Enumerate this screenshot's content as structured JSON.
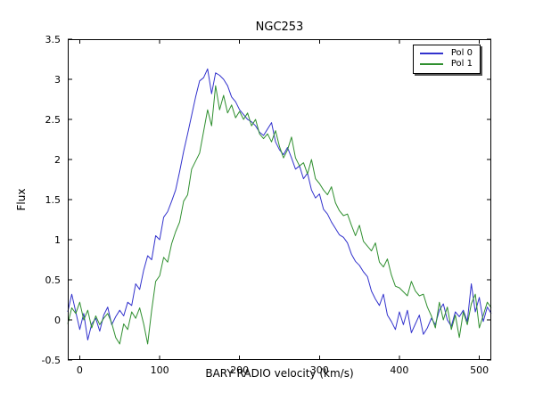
{
  "chart_data": {
    "type": "line",
    "title": "NGC253",
    "xlabel": "BARY RADIO velocity (km/s)",
    "ylabel": "Flux",
    "xlim": [
      -15,
      515
    ],
    "ylim": [
      -0.5,
      3.5
    ],
    "xticks": [
      0,
      100,
      200,
      300,
      400,
      500
    ],
    "xtick_labels": [
      "0",
      "100",
      "200",
      "300",
      "400",
      "500"
    ],
    "yticks": [
      -0.5,
      0,
      0.5,
      1,
      1.5,
      2,
      2.5,
      3,
      3.5
    ],
    "ytick_labels": [
      "-0.5",
      "0",
      "0.5",
      "1",
      "1.5",
      "2",
      "2.5",
      "3",
      "3.5"
    ],
    "grid": false,
    "legend_position": "upper right",
    "x": [
      -15,
      -10,
      -5,
      0,
      5,
      10,
      15,
      20,
      25,
      30,
      35,
      40,
      45,
      50,
      55,
      60,
      65,
      70,
      75,
      80,
      85,
      90,
      95,
      100,
      105,
      110,
      115,
      120,
      125,
      130,
      135,
      140,
      145,
      150,
      155,
      160,
      165,
      170,
      175,
      180,
      185,
      190,
      195,
      200,
      205,
      210,
      215,
      220,
      225,
      230,
      235,
      240,
      245,
      250,
      255,
      260,
      265,
      270,
      275,
      280,
      285,
      290,
      295,
      300,
      305,
      310,
      315,
      320,
      325,
      330,
      335,
      340,
      345,
      350,
      355,
      360,
      365,
      370,
      375,
      380,
      385,
      390,
      395,
      400,
      405,
      410,
      415,
      420,
      425,
      430,
      435,
      440,
      445,
      450,
      455,
      460,
      465,
      470,
      475,
      480,
      485,
      490,
      495,
      500,
      505,
      510,
      515
    ],
    "series": [
      {
        "name": "Pol 0",
        "color": "#3232cd",
        "values": [
          0.1,
          0.32,
          0.1,
          -0.12,
          0.08,
          -0.25,
          -0.05,
          0.02,
          -0.14,
          0.06,
          0.16,
          -0.06,
          0.04,
          0.12,
          0.05,
          0.22,
          0.18,
          0.45,
          0.38,
          0.62,
          0.8,
          0.75,
          1.05,
          1.0,
          1.28,
          1.35,
          1.48,
          1.62,
          1.85,
          2.1,
          2.32,
          2.55,
          2.78,
          2.98,
          3.02,
          3.13,
          2.82,
          3.08,
          3.05,
          3.0,
          2.92,
          2.78,
          2.72,
          2.62,
          2.56,
          2.5,
          2.47,
          2.42,
          2.34,
          2.3,
          2.38,
          2.46,
          2.22,
          2.12,
          2.06,
          2.15,
          2.02,
          1.88,
          1.92,
          1.76,
          1.83,
          1.62,
          1.52,
          1.57,
          1.38,
          1.32,
          1.22,
          1.14,
          1.06,
          1.03,
          0.96,
          0.82,
          0.73,
          0.68,
          0.6,
          0.54,
          0.36,
          0.26,
          0.18,
          0.32,
          0.06,
          -0.02,
          -0.12,
          0.1,
          -0.06,
          0.12,
          -0.16,
          -0.05,
          0.06,
          -0.18,
          -0.1,
          0.02,
          -0.06,
          0.12,
          0.2,
          0.0,
          -0.08,
          0.1,
          0.04,
          0.12,
          -0.02,
          0.45,
          0.1,
          0.28,
          -0.02,
          0.16,
          0.08
        ]
      },
      {
        "name": "Pol 1",
        "color": "#2f8f2f",
        "values": [
          -0.05,
          0.15,
          0.08,
          0.22,
          0.0,
          0.12,
          -0.1,
          0.05,
          -0.06,
          0.02,
          0.08,
          -0.04,
          -0.22,
          -0.3,
          -0.05,
          -0.12,
          0.1,
          0.02,
          0.15,
          -0.05,
          -0.3,
          0.12,
          0.48,
          0.55,
          0.78,
          0.72,
          0.95,
          1.1,
          1.22,
          1.48,
          1.56,
          1.88,
          1.98,
          2.08,
          2.35,
          2.62,
          2.42,
          2.92,
          2.62,
          2.8,
          2.58,
          2.68,
          2.52,
          2.6,
          2.5,
          2.58,
          2.42,
          2.5,
          2.32,
          2.26,
          2.32,
          2.22,
          2.36,
          2.16,
          2.02,
          2.12,
          2.28,
          2.02,
          1.92,
          1.96,
          1.82,
          2.0,
          1.76,
          1.7,
          1.62,
          1.56,
          1.66,
          1.46,
          1.36,
          1.3,
          1.32,
          1.18,
          1.05,
          1.18,
          0.98,
          0.92,
          0.86,
          0.96,
          0.72,
          0.66,
          0.76,
          0.56,
          0.42,
          0.4,
          0.35,
          0.3,
          0.48,
          0.36,
          0.3,
          0.32,
          0.16,
          0.05,
          -0.1,
          0.22,
          0.0,
          0.16,
          -0.12,
          0.06,
          -0.22,
          0.1,
          -0.06,
          0.2,
          0.32,
          -0.1,
          0.06,
          0.22,
          0.15
        ]
      }
    ]
  }
}
